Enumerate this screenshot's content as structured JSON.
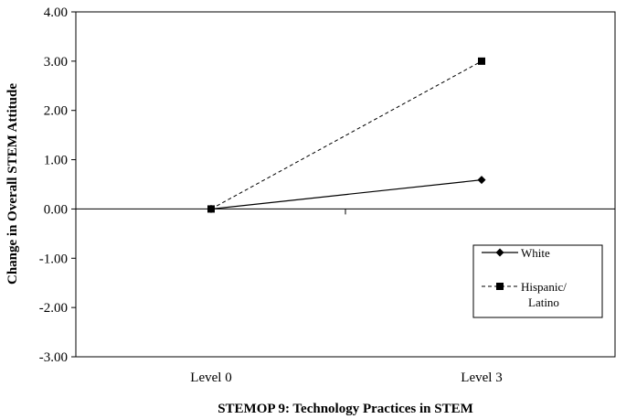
{
  "chart_data": {
    "type": "line",
    "categories": [
      "Level 0",
      "Level 3"
    ],
    "series": [
      {
        "name": "White",
        "values": [
          0.0,
          0.59
        ],
        "marker": "diamond",
        "line_style": "solid",
        "color": "#000000"
      },
      {
        "name_lines": [
          "Hispanic/",
          "Latino"
        ],
        "values": [
          0.0,
          3.0
        ],
        "marker": "square",
        "line_style": "dashed",
        "color": "#000000"
      }
    ],
    "xlabel": "STEMOP 9: Technology Practices in STEM",
    "ylabel": "Change in Overall STEM Attitude",
    "ylim": [
      -3.0,
      4.0
    ],
    "yticks": [
      "-3.00",
      "-2.00",
      "-1.00",
      "0.00",
      "1.00",
      "2.00",
      "3.00",
      "4.00"
    ],
    "grid": false,
    "legend_position": "right"
  }
}
